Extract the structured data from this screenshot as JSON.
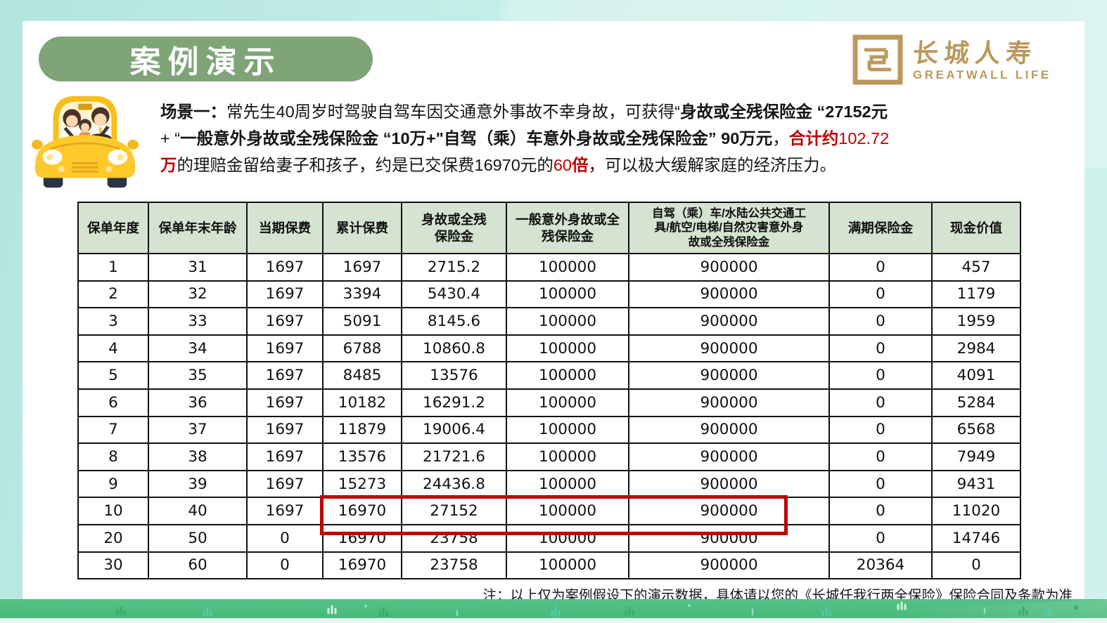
{
  "header": {
    "title": "案例演示"
  },
  "logo": {
    "name_cn": "长城人寿",
    "name_en": "GREATWALL LIFE",
    "color": "#BD985C"
  },
  "scenario": {
    "lines": [
      [
        {
          "text": "场景一：",
          "bold": true
        },
        {
          "text": "常先生40周岁时驾驶自驾车因交通意外事故不幸身故，可获得“",
          "bold": false
        },
        {
          "text": "身故或全残保险金 “27152元",
          "bold": true
        }
      ],
      [
        {
          "text": "+ “",
          "bold": false
        },
        {
          "text": "一般意外身故或全残保险金 “10万+\"自驾（乘）车意外身故或全残保险金” 90万元",
          "bold": true
        },
        {
          "text": "，",
          "bold": false
        },
        {
          "text": "合计约",
          "bold": true,
          "red": true
        },
        {
          "text": "102.72",
          "red": true
        }
      ],
      [
        {
          "text": "万",
          "bold": true,
          "red": true
        },
        {
          "text": "的理赔金留给妻子和孩子，约是已交保费16970元的",
          "bold": false
        },
        {
          "text": "60",
          "red": true
        },
        {
          "text": "倍",
          "bold": true,
          "red": true
        },
        {
          "text": "，可以极大缓解家庭的经济压力。",
          "bold": false
        }
      ]
    ]
  },
  "table": {
    "headers": [
      "保单年度",
      "保单年末年龄",
      "当期保费",
      "累计保费",
      "身故或全残\n保险金",
      "一般意外身故或全\n残保险金",
      "自驾（乘）车/水陆公共交通工\n具/航空/电梯/自然灾害意外身\n故或全残保险金",
      "满期保险金",
      "现金价值"
    ],
    "rows": [
      [
        "1",
        "31",
        "1697",
        "1697",
        "2715.2",
        "100000",
        "900000",
        "0",
        "457"
      ],
      [
        "2",
        "32",
        "1697",
        "3394",
        "5430.4",
        "100000",
        "900000",
        "0",
        "1179"
      ],
      [
        "3",
        "33",
        "1697",
        "5091",
        "8145.6",
        "100000",
        "900000",
        "0",
        "1959"
      ],
      [
        "4",
        "34",
        "1697",
        "6788",
        "10860.8",
        "100000",
        "900000",
        "0",
        "2984"
      ],
      [
        "5",
        "35",
        "1697",
        "8485",
        "13576",
        "100000",
        "900000",
        "0",
        "4091"
      ],
      [
        "6",
        "36",
        "1697",
        "10182",
        "16291.2",
        "100000",
        "900000",
        "0",
        "5284"
      ],
      [
        "7",
        "37",
        "1697",
        "11879",
        "19006.4",
        "100000",
        "900000",
        "0",
        "6568"
      ],
      [
        "8",
        "38",
        "1697",
        "13576",
        "21721.6",
        "100000",
        "900000",
        "0",
        "7949"
      ],
      [
        "9",
        "39",
        "1697",
        "15273",
        "24436.8",
        "100000",
        "900000",
        "0",
        "9431"
      ],
      [
        "10",
        "40",
        "1697",
        "16970",
        "27152",
        "100000",
        "900000",
        "0",
        "11020"
      ],
      [
        "20",
        "50",
        "0",
        "16970",
        "23758",
        "100000",
        "900000",
        "0",
        "14746"
      ],
      [
        "30",
        "60",
        "0",
        "16970",
        "23758",
        "100000",
        "900000",
        "20364",
        "0"
      ]
    ],
    "highlight_box": {
      "row_year": "10",
      "from_column": "累计保费",
      "to_column": "自驾（乘）车/水陆公共交通工具/航空/电梯/自然灾害意外身故或全残保险金",
      "color": "#C00000"
    }
  },
  "note": "注：以上仅为案例假设下的演示数据，具体请以您的《长城任我行两全保险》保险合同及条款为准",
  "colors": {
    "title_pill_green": "#7EA478",
    "table_header_green": "#D5E3D1",
    "highlight_red": "#C00000",
    "logo_gold": "#BD985C",
    "grass_green": "#4AB87A",
    "background_teal": "#C6EEE8"
  }
}
